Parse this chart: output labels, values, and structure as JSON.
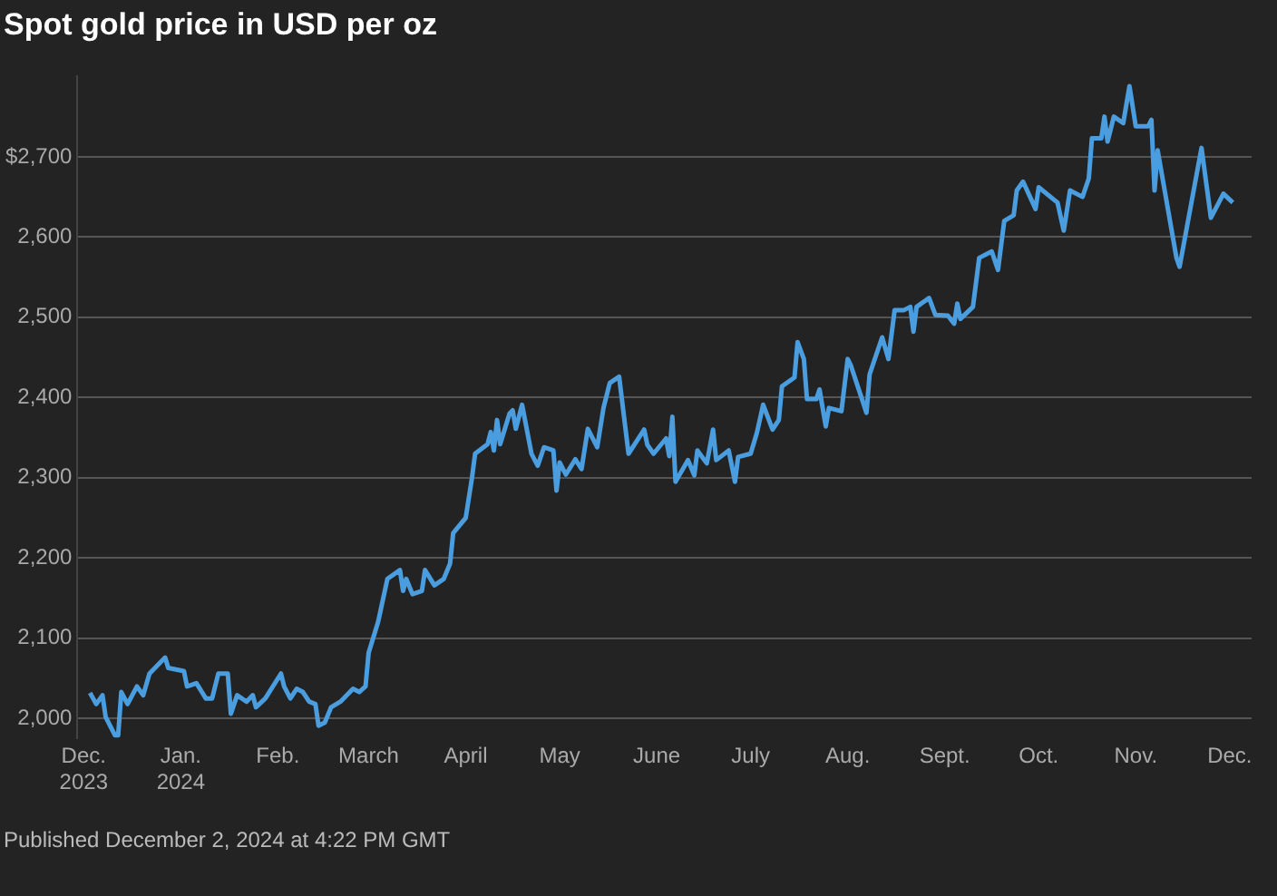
{
  "chart_data": {
    "type": "line",
    "title": "Spot gold price in USD per oz",
    "annotations": [
      "Published December 2, 2024 at 4:22 PM GMT"
    ],
    "x": [
      "2023-12-03",
      "2023-12-05",
      "2023-12-07",
      "2023-12-08",
      "2023-12-11",
      "2023-12-12",
      "2023-12-13",
      "2023-12-15",
      "2023-12-18",
      "2023-12-20",
      "2023-12-22",
      "2023-12-27",
      "2023-12-28",
      "2024-01-02",
      "2024-01-03",
      "2024-01-06",
      "2024-01-09",
      "2024-01-11",
      "2024-01-13",
      "2024-01-16",
      "2024-01-17",
      "2024-01-19",
      "2024-01-22",
      "2024-01-24",
      "2024-01-25",
      "2024-01-28",
      "2024-02-02",
      "2024-02-03",
      "2024-02-05",
      "2024-02-07",
      "2024-02-09",
      "2024-02-11",
      "2024-02-13",
      "2024-02-14",
      "2024-02-16",
      "2024-02-18",
      "2024-02-21",
      "2024-02-25",
      "2024-02-27",
      "2024-02-29",
      "2024-03-01",
      "2024-03-04",
      "2024-03-07",
      "2024-03-11",
      "2024-03-12",
      "2024-03-13",
      "2024-03-15",
      "2024-03-18",
      "2024-03-19",
      "2024-03-22",
      "2024-03-25",
      "2024-03-27",
      "2024-03-28",
      "2024-04-01",
      "2024-04-03",
      "2024-04-04",
      "2024-04-08",
      "2024-04-09",
      "2024-04-10",
      "2024-04-11",
      "2024-04-12",
      "2024-04-15",
      "2024-04-16",
      "2024-04-17",
      "2024-04-19",
      "2024-04-22",
      "2024-04-24",
      "2024-04-26",
      "2024-04-29",
      "2024-04-30",
      "2024-05-01",
      "2024-05-03",
      "2024-05-06",
      "2024-05-08",
      "2024-05-10",
      "2024-05-13",
      "2024-05-15",
      "2024-05-17",
      "2024-05-20",
      "2024-05-23",
      "2024-05-28",
      "2024-05-29",
      "2024-05-31",
      "2024-06-04",
      "2024-06-05",
      "2024-06-06",
      "2024-06-07",
      "2024-06-11",
      "2024-06-13",
      "2024-06-14",
      "2024-06-17",
      "2024-06-19",
      "2024-06-20",
      "2024-06-24",
      "2024-06-26",
      "2024-06-27",
      "2024-07-01",
      "2024-07-03",
      "2024-07-05",
      "2024-07-08",
      "2024-07-10",
      "2024-07-11",
      "2024-07-15",
      "2024-07-16",
      "2024-07-18",
      "2024-07-19",
      "2024-07-22",
      "2024-07-23",
      "2024-07-25",
      "2024-07-26",
      "2024-07-30",
      "2024-08-01",
      "2024-08-02",
      "2024-08-07",
      "2024-08-08",
      "2024-08-12",
      "2024-08-14",
      "2024-08-16",
      "2024-08-19",
      "2024-08-21",
      "2024-08-22",
      "2024-08-23",
      "2024-08-27",
      "2024-08-29",
      "2024-09-02",
      "2024-09-04",
      "2024-09-05",
      "2024-09-06",
      "2024-09-10",
      "2024-09-12",
      "2024-09-16",
      "2024-09-18",
      "2024-09-20",
      "2024-09-23",
      "2024-09-24",
      "2024-09-26",
      "2024-09-30",
      "2024-10-01",
      "2024-10-07",
      "2024-10-09",
      "2024-10-11",
      "2024-10-15",
      "2024-10-17",
      "2024-10-18",
      "2024-10-21",
      "2024-10-22",
      "2024-10-23",
      "2024-10-25",
      "2024-10-28",
      "2024-10-30",
      "2024-11-01",
      "2024-11-05",
      "2024-11-06",
      "2024-11-07",
      "2024-11-08",
      "2024-11-14",
      "2024-11-15",
      "2024-11-22",
      "2024-11-25",
      "2024-11-29",
      "2024-12-02"
    ],
    "series": [
      {
        "color": "#4a9ee0",
        "values": [
          2032,
          2018,
          2029,
          2002,
          1979,
          1979,
          2033,
          2018,
          2040,
          2029,
          2056,
          2076,
          2063,
          2059,
          2040,
          2044,
          2025,
          2025,
          2056,
          2056,
          2006,
          2029,
          2021,
          2029,
          2014,
          2025,
          2056,
          2040,
          2025,
          2037,
          2033,
          2021,
          2018,
          1991,
          1995,
          2014,
          2021,
          2037,
          2033,
          2040,
          2082,
          2120,
          2174,
          2185,
          2159,
          2174,
          2155,
          2159,
          2185,
          2166,
          2174,
          2193,
          2231,
          2250,
          2300,
          2330,
          2342,
          2357,
          2334,
          2372,
          2342,
          2380,
          2384,
          2361,
          2391,
          2330,
          2315,
          2338,
          2334,
          2284,
          2319,
          2304,
          2323,
          2311,
          2361,
          2338,
          2387,
          2418,
          2426,
          2330,
          2360,
          2341,
          2330,
          2349,
          2327,
          2376,
          2295,
          2322,
          2303,
          2334,
          2318,
          2360,
          2322,
          2334,
          2295,
          2326,
          2330,
          2356,
          2391,
          2360,
          2372,
          2414,
          2425,
          2469,
          2448,
          2398,
          2398,
          2410,
          2364,
          2387,
          2383,
          2448,
          2440,
          2381,
          2429,
          2475,
          2448,
          2509,
          2509,
          2513,
          2482,
          2513,
          2524,
          2503,
          2502,
          2492,
          2517,
          2498,
          2513,
          2574,
          2582,
          2559,
          2620,
          2627,
          2658,
          2669,
          2635,
          2662,
          2643,
          2608,
          2658,
          2650,
          2673,
          2723,
          2723,
          2750,
          2719,
          2750,
          2742,
          2788,
          2738,
          2738,
          2746,
          2658,
          2708,
          2574,
          2563,
          2711,
          2624,
          2654,
          2643
        ]
      }
    ],
    "xlim": [
      "2023-11-29",
      "2024-12-08"
    ],
    "xticks": [
      {
        "value": "2023-12-01",
        "label": "Dec.\n2023"
      },
      {
        "value": "2024-01-01",
        "label": "Jan.\n2024"
      },
      {
        "value": "2024-02-01",
        "label": "Feb."
      },
      {
        "value": "2024-03-01",
        "label": "March"
      },
      {
        "value": "2024-04-01",
        "label": "April"
      },
      {
        "value": "2024-05-01",
        "label": "May"
      },
      {
        "value": "2024-06-01",
        "label": "June"
      },
      {
        "value": "2024-07-01",
        "label": "July"
      },
      {
        "value": "2024-08-01",
        "label": "Aug."
      },
      {
        "value": "2024-09-01",
        "label": "Sept."
      },
      {
        "value": "2024-10-01",
        "label": "Oct."
      },
      {
        "value": "2024-11-01",
        "label": "Nov."
      },
      {
        "value": "2024-12-01",
        "label": "Dec."
      }
    ],
    "ylim": [
      1975,
      2800
    ],
    "yticks": [
      {
        "value": 2000,
        "label": "2,000"
      },
      {
        "value": 2100,
        "label": "2,100"
      },
      {
        "value": 2200,
        "label": "2,200"
      },
      {
        "value": 2300,
        "label": "2,300"
      },
      {
        "value": 2400,
        "label": "2,400"
      },
      {
        "value": 2500,
        "label": "2,500"
      },
      {
        "value": 2600,
        "label": "2,600"
      },
      {
        "value": 2700,
        "label": "$2,700"
      }
    ],
    "grid": "y",
    "legend": false,
    "marker": "none",
    "line_style": "solid"
  }
}
